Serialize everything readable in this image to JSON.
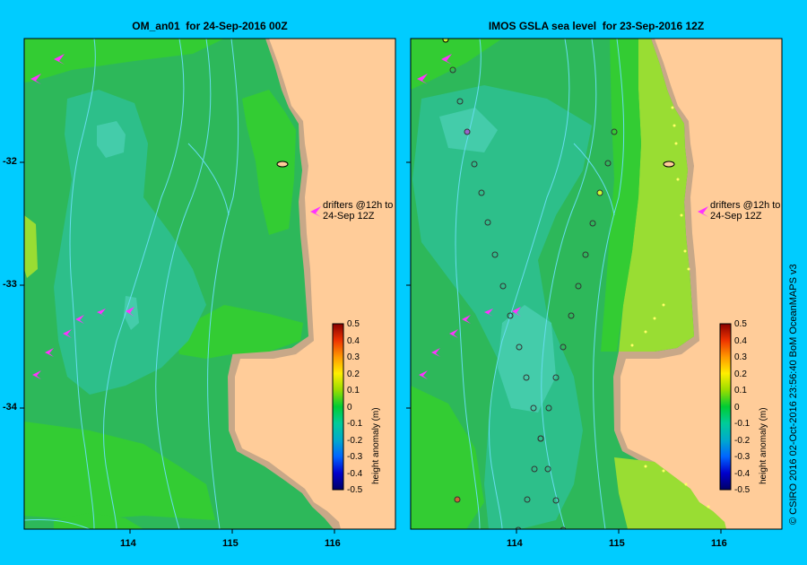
{
  "panels": [
    {
      "title": "OM_an01  for 24-Sep-2016 00Z"
    },
    {
      "title": "IMOS GSLA sea level  for 23-Sep-2016 12Z"
    }
  ],
  "axes": {
    "lat_ticks": [
      "-32",
      "-33",
      "-34"
    ],
    "lon_ticks": [
      "114",
      "115",
      "116"
    ]
  },
  "colorbar": {
    "title": "height anomaly (m)",
    "ticks": [
      "0.5",
      "0.4",
      "0.3",
      "0.2",
      "0.1",
      "0",
      "-0.1",
      "-0.2",
      "-0.3",
      "-0.4",
      "-0.5"
    ]
  },
  "drifter_note": {
    "line1": "drifters @12h to",
    "line2": "24-Sep 12Z"
  },
  "credit": "© CSIRO 2016   02-Oct-2016 23:56:40 BoM OceanMAPS v3",
  "colors": {
    "land": "#ffcc99",
    "coast": "#c8a888",
    "sea_green": "#2db85a",
    "sea_light": "#33cc33",
    "sea_teal": "#2dbf8a",
    "drifter": "#ff33ff",
    "frame": "#00ccff"
  },
  "icons": [
    "drifter-arrow-icon",
    "altimeter-track-marker-icon"
  ]
}
